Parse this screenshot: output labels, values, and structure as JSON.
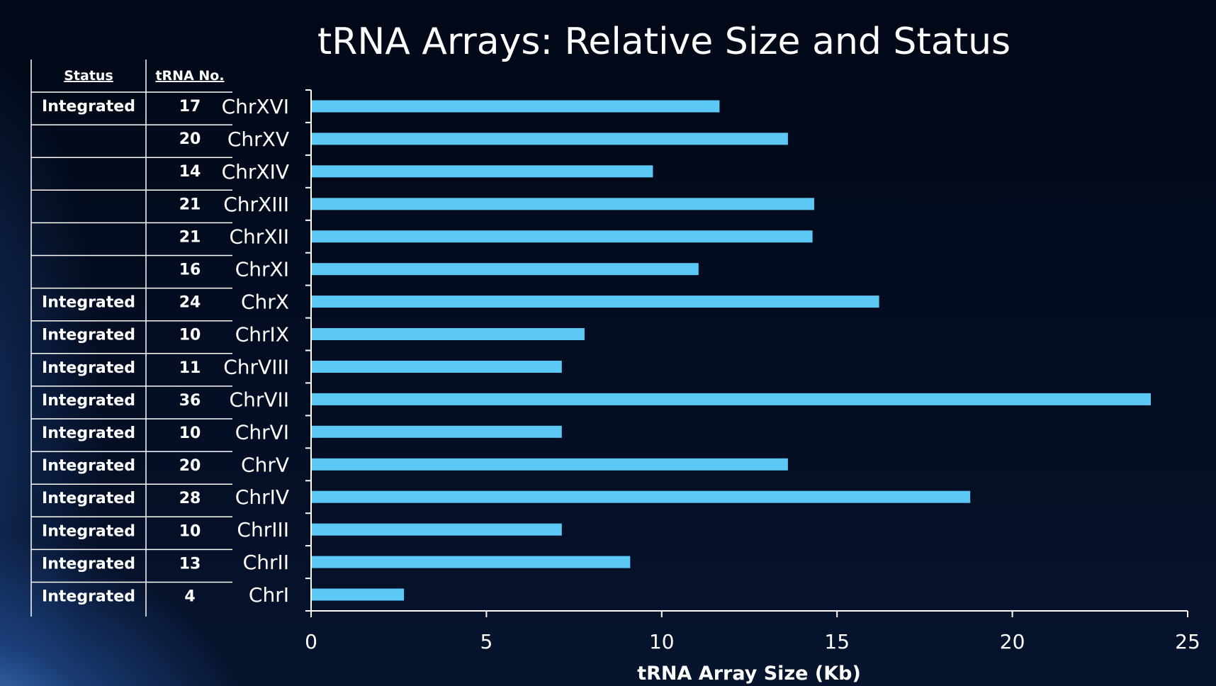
{
  "chart_data": {
    "type": "bar",
    "orientation": "horizontal",
    "title": "tRNA Arrays: Relative Size and Status",
    "xlabel": "tRNA Array Size (Kb)",
    "ylabel": "",
    "xlim": [
      0,
      25
    ],
    "xticks": [
      0,
      5,
      10,
      15,
      20,
      25
    ],
    "grid": false,
    "legend": "none",
    "bar_color": "#5cc8f5",
    "categories": [
      "ChrXVI",
      "ChrXV",
      "ChrXIV",
      "ChrXIII",
      "ChrXII",
      "ChrXI",
      "ChrX",
      "ChrIX",
      "ChrVIII",
      "ChrVII",
      "ChrVI",
      "ChrV",
      "ChrIV",
      "ChrIII",
      "ChrII",
      "ChrI"
    ],
    "values": [
      11.65,
      13.6,
      9.75,
      14.35,
      14.3,
      11.05,
      16.2,
      7.8,
      7.15,
      23.95,
      7.15,
      13.6,
      18.8,
      7.15,
      9.1,
      2.65
    ],
    "table": {
      "headers": {
        "status": "Status",
        "trna_no": "tRNA No."
      },
      "status": [
        "Integrated",
        "",
        "",
        "",
        "",
        "",
        "Integrated",
        "Integrated",
        "Integrated",
        "Integrated",
        "Integrated",
        "Integrated",
        "Integrated",
        "Integrated",
        "Integrated",
        "Integrated"
      ],
      "trna_no": [
        "17",
        "20",
        "14",
        "21",
        "21",
        "16",
        "24",
        "10",
        "11",
        "36",
        "10",
        "20",
        "28",
        "10",
        "13",
        "4"
      ]
    }
  }
}
